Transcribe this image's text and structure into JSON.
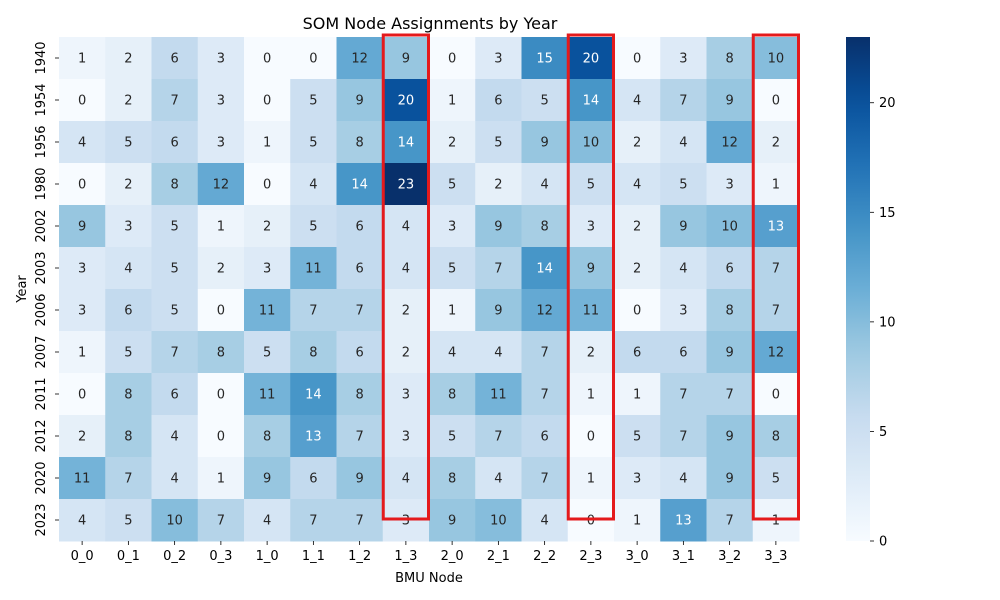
{
  "chart_data": {
    "type": "heatmap",
    "title": "SOM Node Assignments by Year",
    "xlabel": "BMU Node",
    "ylabel": "Year",
    "x_categories": [
      "0_0",
      "0_1",
      "0_2",
      "0_3",
      "1_0",
      "1_1",
      "1_2",
      "1_3",
      "2_0",
      "2_1",
      "2_2",
      "2_3",
      "3_0",
      "3_1",
      "3_2",
      "3_3"
    ],
    "y_categories": [
      "1940",
      "1954",
      "1956",
      "1980",
      "2002",
      "2003",
      "2006",
      "2007",
      "2011",
      "2012",
      "2020",
      "2023"
    ],
    "values": [
      [
        1,
        2,
        6,
        3,
        0,
        0,
        12,
        9,
        0,
        3,
        15,
        20,
        0,
        3,
        8,
        10
      ],
      [
        0,
        2,
        7,
        3,
        0,
        5,
        9,
        20,
        1,
        6,
        5,
        14,
        4,
        7,
        9,
        0
      ],
      [
        4,
        5,
        6,
        3,
        1,
        5,
        8,
        14,
        2,
        5,
        9,
        10,
        2,
        4,
        12,
        2
      ],
      [
        0,
        2,
        8,
        12,
        0,
        4,
        14,
        23,
        5,
        2,
        4,
        5,
        4,
        5,
        3,
        1
      ],
      [
        9,
        3,
        5,
        1,
        2,
        5,
        6,
        4,
        3,
        9,
        8,
        3,
        2,
        9,
        10,
        13
      ],
      [
        3,
        4,
        5,
        2,
        3,
        11,
        6,
        4,
        5,
        7,
        14,
        9,
        2,
        4,
        6,
        7
      ],
      [
        3,
        6,
        5,
        0,
        11,
        7,
        7,
        2,
        1,
        9,
        12,
        11,
        0,
        3,
        8,
        7
      ],
      [
        1,
        5,
        7,
        8,
        5,
        8,
        6,
        2,
        4,
        4,
        7,
        2,
        6,
        6,
        9,
        12
      ],
      [
        0,
        8,
        6,
        0,
        11,
        14,
        8,
        3,
        8,
        11,
        7,
        1,
        1,
        7,
        7,
        0
      ],
      [
        2,
        8,
        4,
        0,
        8,
        13,
        7,
        3,
        5,
        7,
        6,
        0,
        5,
        7,
        9,
        8
      ],
      [
        11,
        7,
        4,
        1,
        9,
        6,
        9,
        4,
        8,
        4,
        7,
        1,
        3,
        4,
        9,
        5
      ],
      [
        4,
        5,
        10,
        7,
        4,
        7,
        7,
        3,
        9,
        10,
        4,
        0,
        1,
        13,
        7,
        1
      ]
    ],
    "value_range": [
      0,
      23
    ],
    "colorbar_ticks": [
      0,
      5,
      10,
      15,
      20
    ],
    "colormap": "Blues",
    "highlighted_columns": [
      "1_3",
      "2_3",
      "3_3"
    ],
    "highlight_color": "#e41a1c"
  }
}
